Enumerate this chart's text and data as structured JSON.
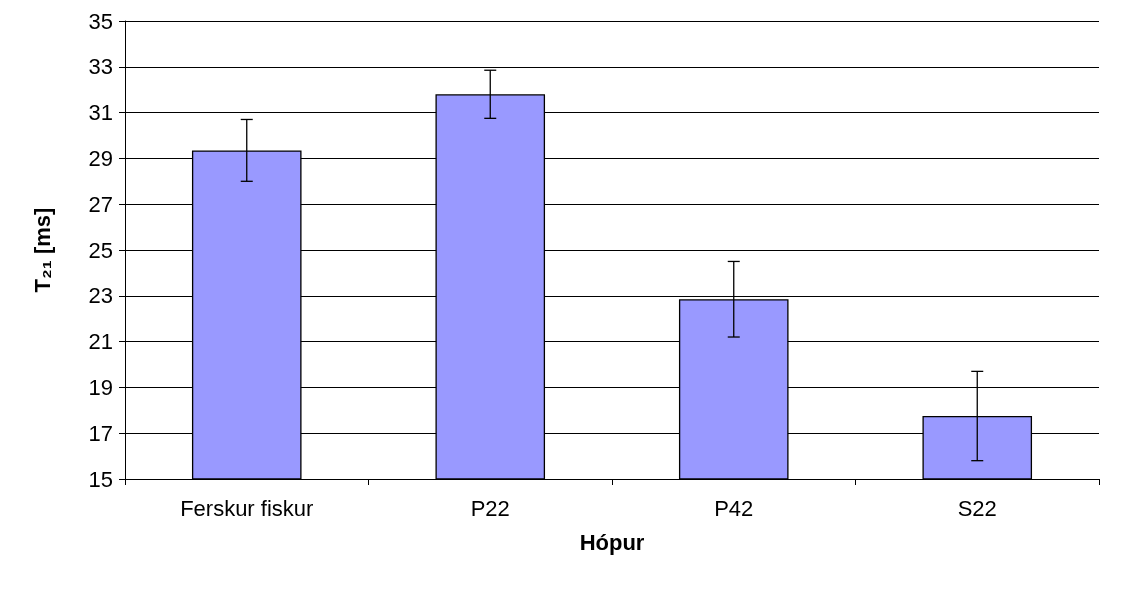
{
  "chart_data": {
    "type": "bar",
    "xlabel": "Hópur",
    "ylabel": "T₂₁ [ms]",
    "categories": [
      "Ferskur fiskur",
      "P22",
      "P42",
      "S22"
    ],
    "values": [
      29.35,
      31.8,
      22.85,
      17.75
    ],
    "errors": [
      1.35,
      1.05,
      1.65,
      1.95
    ],
    "color": "#9999ff",
    "ylim": [
      15,
      35
    ],
    "yticks": [
      15,
      17,
      19,
      21,
      23,
      25,
      27,
      29,
      31,
      33,
      35
    ],
    "grid": "y"
  }
}
